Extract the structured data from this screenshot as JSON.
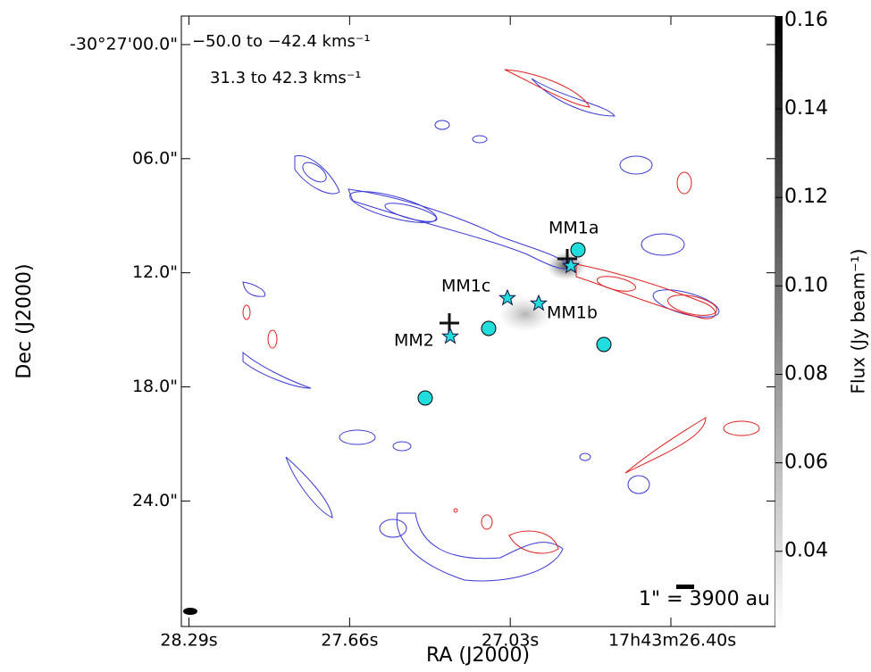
{
  "chart_data": {
    "type": "image",
    "xlabel": "RA (J2000)",
    "ylabel": "Dec (J2000)",
    "xlim": [
      28.32,
      25.99
    ],
    "ylim": [
      -1.5,
      30.6
    ],
    "xticks": [
      {
        "value": 28.29,
        "label": "28.29s"
      },
      {
        "value": 27.66,
        "label": "27.66s"
      },
      {
        "value": 27.03,
        "label": "27.03s"
      },
      {
        "value": 26.4,
        "label": "17h43m26.40s"
      }
    ],
    "yticks": [
      {
        "value": 0,
        "label": "-30°27'00.0\""
      },
      {
        "value": 6,
        "label": "06.0\""
      },
      {
        "value": 12,
        "label": "12.0\""
      },
      {
        "value": 18,
        "label": "18.0\""
      },
      {
        "value": 24,
        "label": "24.0\""
      }
    ],
    "colorbar": {
      "label": "Flux (Jy beam⁻¹)",
      "clim": [
        0.023,
        0.161
      ],
      "ticks": [
        {
          "value": 0.04,
          "label": "0.04"
        },
        {
          "value": 0.06,
          "label": "0.06"
        },
        {
          "value": 0.08,
          "label": "0.08"
        },
        {
          "value": 0.1,
          "label": "0.10"
        },
        {
          "value": 0.12,
          "label": "0.12"
        },
        {
          "value": 0.14,
          "label": "0.14"
        },
        {
          "value": 0.16,
          "label": "0.16"
        }
      ]
    },
    "legend": [
      {
        "name": "−50.0 to −42.4 kms⁻¹",
        "color": "#2b2bdd"
      },
      {
        "name": "31.3 to 42.3 kms⁻¹",
        "color": "#e02020"
      }
    ],
    "sources": [
      "MM1a",
      "MM1b",
      "MM1c",
      "MM2"
    ],
    "scale_bar": "1\" = 3900 au"
  }
}
